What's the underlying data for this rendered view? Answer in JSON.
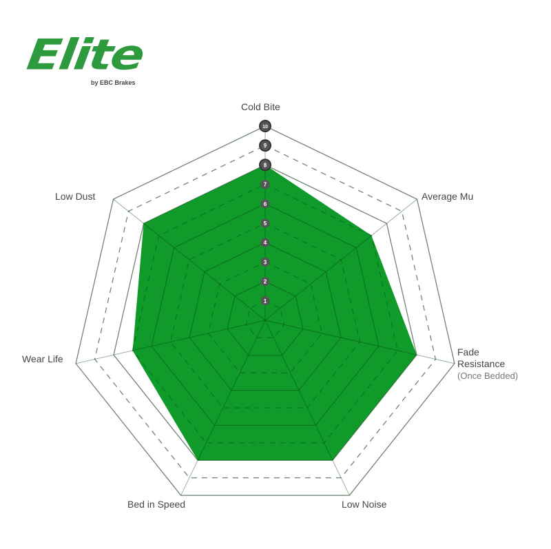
{
  "logo": {
    "text": "Elite",
    "subtitle": "by EBC Brakes"
  },
  "chart_data": {
    "type": "radar",
    "categories": [
      "Cold Bite",
      "Average Mu",
      "Fade Resistance",
      "Low Noise",
      "Bed in Speed",
      "Wear Life",
      "Low Dust"
    ],
    "category_note": {
      "Fade Resistance": "(Once Bedded)"
    },
    "values": [
      8,
      7,
      8,
      8,
      8,
      7,
      8
    ],
    "scale_ticks": [
      "1",
      "2",
      "3",
      "4",
      "5",
      "6",
      "7",
      "8",
      "9",
      "10"
    ],
    "range": [
      0,
      10
    ],
    "fill_color": "#0f9a2a",
    "grid_color": "#bbbbbb"
  }
}
